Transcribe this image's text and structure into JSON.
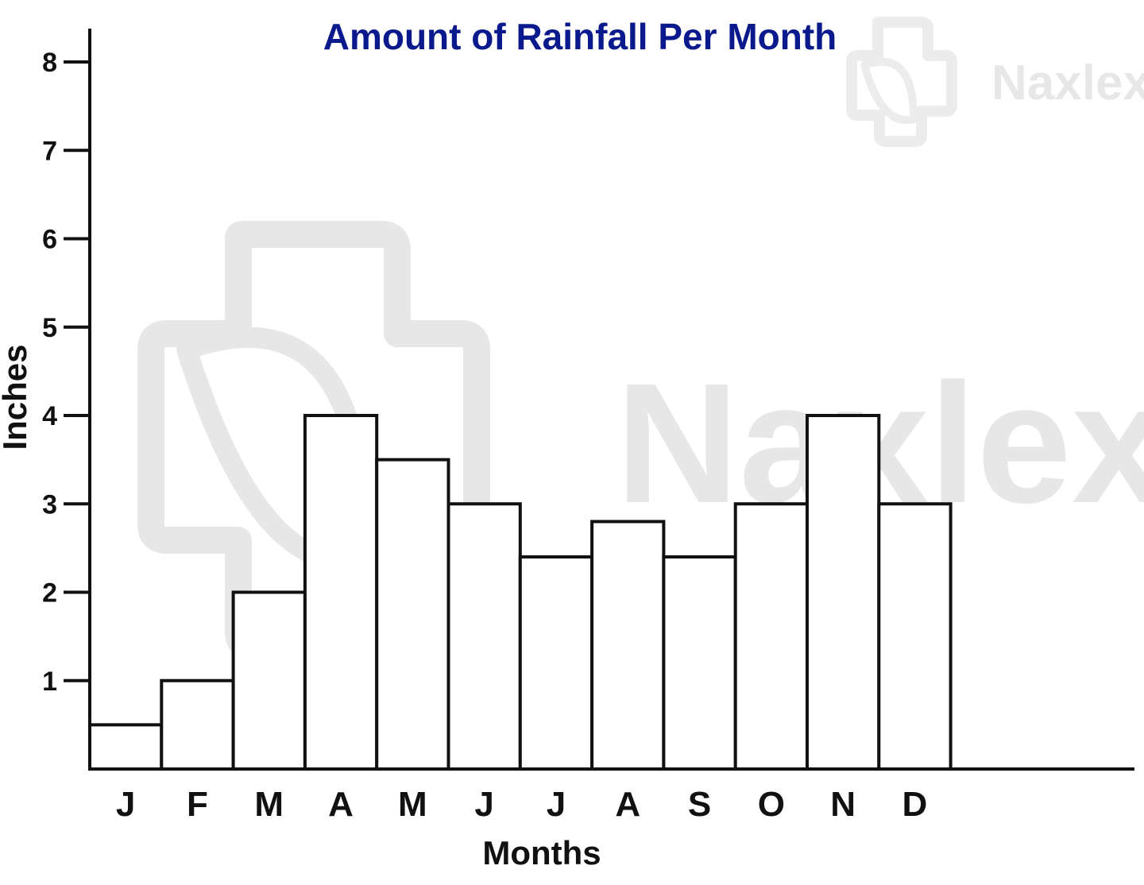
{
  "chart_data": {
    "type": "bar",
    "title": "Amount of Rainfall Per Month",
    "xlabel": "Months",
    "ylabel": "Inches",
    "categories": [
      "J",
      "F",
      "M",
      "A",
      "M",
      "J",
      "J",
      "A",
      "S",
      "O",
      "N",
      "D"
    ],
    "values": [
      0.5,
      1.0,
      2.0,
      4.0,
      3.5,
      3.0,
      2.4,
      2.8,
      2.4,
      3.0,
      4.0,
      3.0
    ],
    "yticks": [
      "1",
      "2",
      "3",
      "4",
      "5",
      "6",
      "7",
      "8"
    ],
    "ylim": [
      0,
      8
    ],
    "grid": false,
    "legend": "none"
  },
  "colors": {
    "title": "#0a1a8c",
    "bar_fill": "#ffffff",
    "bar_stroke": "#111111",
    "axis": "#111111",
    "watermark": "#e7e7e7"
  },
  "watermark": {
    "text": "Naxlex",
    "icon": "naxlex-logo-icon"
  }
}
